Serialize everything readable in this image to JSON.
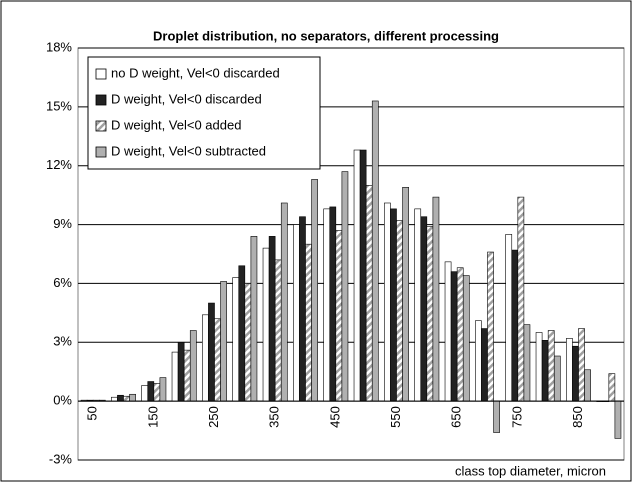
{
  "chart_data": {
    "type": "bar",
    "title": "Droplet distribution, no separators, different processing",
    "x_label": "class top diameter, micron",
    "categories": [
      50,
      null,
      150,
      null,
      250,
      null,
      350,
      null,
      450,
      null,
      550,
      null,
      650,
      null,
      750,
      null,
      850,
      null
    ],
    "series": [
      {
        "name": "no D weight, Vel<0 discarded",
        "color": "#ffffff",
        "values": [
          0.05,
          0.2,
          0.8,
          2.5,
          4.4,
          6.3,
          7.8,
          9.0,
          9.8,
          12.8,
          10.1,
          9.8,
          7.1,
          4.1,
          8.5,
          3.5,
          3.2,
          0
        ]
      },
      {
        "name": "D weight, Vel<0 discarded",
        "color": "#222222",
        "values": [
          0.05,
          0.3,
          1.0,
          3.0,
          5.0,
          6.9,
          8.4,
          9.4,
          9.9,
          12.8,
          9.8,
          9.4,
          6.6,
          3.7,
          7.7,
          3.1,
          2.8,
          0
        ]
      },
      {
        "name": "D weight, Vel<0 added",
        "color": "#a0a0a0",
        "pattern": "diagonal",
        "values": [
          0.05,
          0.25,
          0.9,
          2.6,
          4.2,
          6.0,
          7.2,
          8.0,
          8.7,
          11.0,
          9.2,
          8.9,
          6.8,
          7.6,
          10.4,
          3.6,
          3.7,
          1.4
        ]
      },
      {
        "name": "D weight, Vel<0 subtracted",
        "color": "#b0b0b0",
        "values": [
          0.05,
          0.35,
          1.2,
          3.6,
          6.1,
          8.4,
          10.1,
          11.3,
          11.7,
          15.3,
          10.9,
          10.4,
          6.4,
          -1.6,
          3.9,
          2.3,
          1.6,
          -1.9
        ]
      }
    ],
    "ylim": [
      -3,
      18
    ],
    "yticks": [
      {
        "value": -3,
        "label": "-3%"
      },
      {
        "value": 0,
        "label": "0%"
      },
      {
        "value": 3,
        "label": "3%"
      },
      {
        "value": 6,
        "label": "6%"
      },
      {
        "value": 9,
        "label": "9%"
      },
      {
        "value": 12,
        "label": "12%"
      },
      {
        "value": 15,
        "label": "15%"
      },
      {
        "value": 18,
        "label": "18%"
      }
    ],
    "grid": true,
    "legend": "upper left"
  }
}
